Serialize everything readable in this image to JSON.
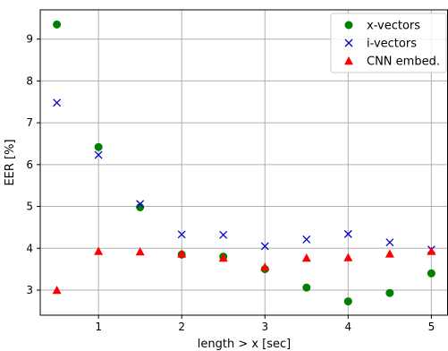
{
  "chart_data": {
    "type": "scatter",
    "xlabel": "length > x [sec]",
    "ylabel": "EER [%]",
    "xlim": [
      0.3,
      5.2
    ],
    "ylim": [
      2.4,
      9.7
    ],
    "x_ticks": [
      1,
      2,
      3,
      4,
      5
    ],
    "y_ticks": [
      3,
      4,
      5,
      6,
      7,
      8,
      9
    ],
    "grid": true,
    "legend_position": "top-right",
    "series": [
      {
        "name": "x-vectors",
        "marker": "circle",
        "color": "#008000",
        "x": [
          0.5,
          1.0,
          1.5,
          2.0,
          2.5,
          3.0,
          3.5,
          4.0,
          4.5,
          5.0
        ],
        "y": [
          9.35,
          6.42,
          4.98,
          3.85,
          3.8,
          3.5,
          3.06,
          2.73,
          2.93,
          3.4
        ]
      },
      {
        "name": "i-vectors",
        "marker": "x",
        "color": "#0000cc",
        "x": [
          0.5,
          1.0,
          1.5,
          2.0,
          2.5,
          3.0,
          3.5,
          4.0,
          4.5,
          5.0
        ],
        "y": [
          7.48,
          6.23,
          5.06,
          4.33,
          4.32,
          4.05,
          4.21,
          4.34,
          4.14,
          3.97
        ]
      },
      {
        "name": "CNN embed.",
        "marker": "triangle",
        "color": "#ff0000",
        "x": [
          0.5,
          1.0,
          1.5,
          2.0,
          2.5,
          3.0,
          3.5,
          4.0,
          4.5,
          5.0
        ],
        "y": [
          3.0,
          3.93,
          3.92,
          3.87,
          3.77,
          3.55,
          3.77,
          3.78,
          3.87,
          3.93
        ]
      }
    ]
  }
}
